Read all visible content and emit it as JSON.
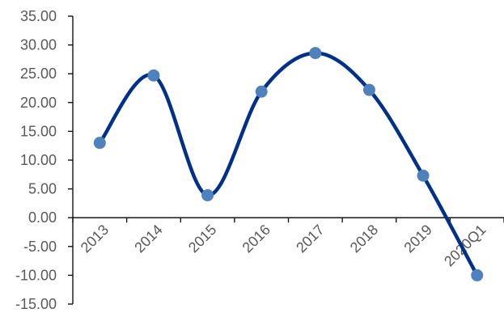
{
  "chart_data": {
    "type": "line",
    "categories": [
      "2013",
      "2014",
      "2015",
      "2016",
      "2017",
      "2018",
      "2019",
      "2020Q1"
    ],
    "series": [
      {
        "values": [
          13.0,
          24.7,
          3.9,
          21.9,
          28.6,
          22.2,
          7.3,
          -10.0
        ]
      }
    ],
    "y_tick_labels": [
      "35.00",
      "30.00",
      "25.00",
      "20.00",
      "15.00",
      "10.00",
      "5.00",
      "0.00",
      "-5.00",
      "-10.00",
      "-15.00"
    ],
    "ylim": [
      -15,
      35
    ],
    "y_step": 5,
    "smooth": true,
    "markers": true,
    "grid": false,
    "legend": "none",
    "colors": {
      "line": "#003087",
      "marker": "#4f81bd",
      "axis": "#000000",
      "text": "#595959"
    }
  }
}
